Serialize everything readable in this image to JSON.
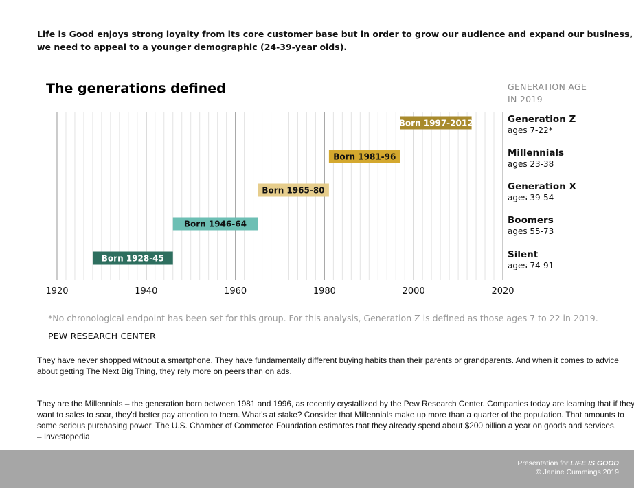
{
  "intro": {
    "line1": "Life is Good enjoys strong loyalty from its core customer base but in order to grow our audience and expand our business,",
    "line2": "we need to appeal to a younger demographic (24-39-year olds)."
  },
  "chart_data": {
    "type": "bar",
    "title": "The generations defined",
    "right_header": [
      "GENERATION AGE",
      "IN 2019"
    ],
    "xlim": [
      1920,
      2020
    ],
    "xticks": [
      1920,
      1940,
      1960,
      1980,
      2000,
      2020
    ],
    "generations": [
      {
        "name": "Generation Z",
        "ages": "ages 7-22*",
        "label": "Born 1997-2012",
        "start": 1997,
        "end": 2012,
        "color": "#a88a2c",
        "text_color": "#ffffff"
      },
      {
        "name": "Millennials",
        "ages": "ages 23-38",
        "label": "Born 1981-96",
        "start": 1981,
        "end": 1996,
        "color": "#d4a82e",
        "text_color": "#111111"
      },
      {
        "name": "Generation X",
        "ages": "ages 39-54",
        "label": "Born 1965-80",
        "start": 1965,
        "end": 1980,
        "color": "#e6cd8c",
        "text_color": "#111111"
      },
      {
        "name": "Boomers",
        "ages": "ages 55-73",
        "label": "Born 1946-64",
        "start": 1946,
        "end": 1964,
        "color": "#6dbfb4",
        "text_color": "#111111"
      },
      {
        "name": "Silent",
        "ages": "ages 74-91",
        "label": "Born 1928-45",
        "start": 1928,
        "end": 1945,
        "color": "#2e6f5f",
        "text_color": "#ffffff"
      }
    ],
    "note": "*No chronological endpoint has been set for this group. For this analysis, Generation Z is defined as those ages 7 to 22 in 2019.",
    "source": "PEW RESEARCH CENTER"
  },
  "paragraphs": {
    "p1": [
      "They have never shopped without a smartphone. They have fundamentally different buying habits than their parents or grandparents. And when it comes to advice",
      "about getting The Next Big Thing, they rely more on peers than on ads."
    ],
    "p2": [
      "They are the Millennials – the generation born between 1981 and 1996, as recently crystallized by the Pew Research Center. Companies today are learning that if they",
      "want to sales to soar, they'd better  pay attention to them. What's at stake? Consider that Millennials make up more than a quarter of the population. That amounts to",
      "some serious purchasing power. The U.S. Chamber of Commerce Foundation estimates that they already spend about $200 billion a year on goods and services.",
      "– Investopedia"
    ]
  },
  "footer": {
    "presentation_for": "Presentation for",
    "brand": "LIFE IS GOOD",
    "copyright": "© Janine Cummings 2019"
  }
}
